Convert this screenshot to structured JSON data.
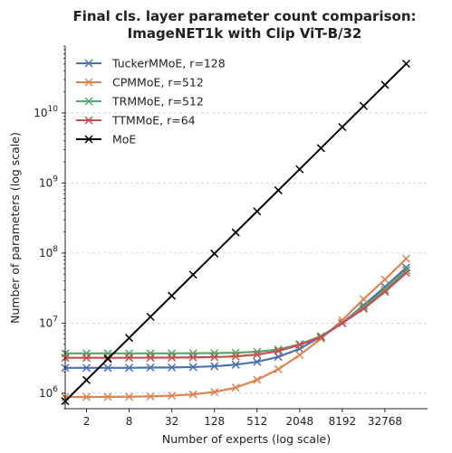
{
  "chart_data": {
    "type": "line",
    "title_lines": [
      "Final cls. layer parameter count comparison:",
      "ImageNET1k with Clip ViT-B/32"
    ],
    "xlabel": "Number of experts (log scale)",
    "ylabel": "Number of parameters (log scale)",
    "x_scale": "log2",
    "y_scale": "log10",
    "xlim": [
      1,
      131072
    ],
    "ylim": [
      600000,
      90000000000
    ],
    "grid": "y-major, dashed",
    "legend_position": "top-left",
    "x_ticks": [
      2,
      8,
      32,
      128,
      512,
      2048,
      8192,
      32768
    ],
    "x_tick_labels": [
      "2",
      "8",
      "32",
      "128",
      "512",
      "2048",
      "8192",
      "32768"
    ],
    "y_ticks": [
      1000000,
      10000000,
      100000000,
      1000000000,
      10000000000
    ],
    "y_tick_base": "10",
    "y_tick_exponents": [
      "6",
      "7",
      "8",
      "9",
      "10"
    ],
    "x": [
      1,
      2,
      4,
      8,
      16,
      32,
      64,
      128,
      256,
      512,
      1024,
      2048,
      4096,
      8192,
      16384,
      32768,
      65536
    ],
    "series": [
      {
        "name": "TuckerMMoE, r=128",
        "color": "#4c72b0",
        "marker": "x",
        "values": [
          2300000,
          2300000,
          2300000,
          2300000,
          2320000,
          2330000,
          2360000,
          2420000,
          2550000,
          2800000,
          3300000,
          4300000,
          6400000,
          10000000,
          18000000,
          33000000,
          62000000
        ]
      },
      {
        "name": "CPMMoE, r=512",
        "color": "#dd8452",
        "marker": "x",
        "values": [
          880000,
          880000,
          885000,
          890000,
          900000,
          920000,
          960000,
          1040000,
          1200000,
          1550000,
          2200000,
          3500000,
          6000000,
          11000000,
          22000000,
          42000000,
          83000000
        ]
      },
      {
        "name": "TRMMoE, r=512",
        "color": "#55a868",
        "marker": "x",
        "values": [
          3700000,
          3700000,
          3700000,
          3700000,
          3700000,
          3700000,
          3710000,
          3730000,
          3770000,
          3900000,
          4200000,
          5000000,
          6500000,
          10000000,
          17000000,
          30000000,
          57000000
        ]
      },
      {
        "name": "TTMMoE, r=64",
        "color": "#c44e52",
        "marker": "x",
        "values": [
          3200000,
          3200000,
          3200000,
          3200000,
          3210000,
          3220000,
          3240000,
          3270000,
          3350000,
          3550000,
          4000000,
          4900000,
          6300000,
          10000000,
          16000000,
          28000000,
          52000000
        ]
      },
      {
        "name": "MoE",
        "color": "#000000",
        "marker": "x",
        "values": [
          770000,
          1540000,
          3080000,
          6150000,
          12300000,
          24600000,
          49200000,
          98400000,
          197000000,
          394000000,
          787000000,
          1570000000,
          3150000000,
          6300000000,
          12600000000,
          25200000000,
          50400000000
        ]
      }
    ]
  }
}
